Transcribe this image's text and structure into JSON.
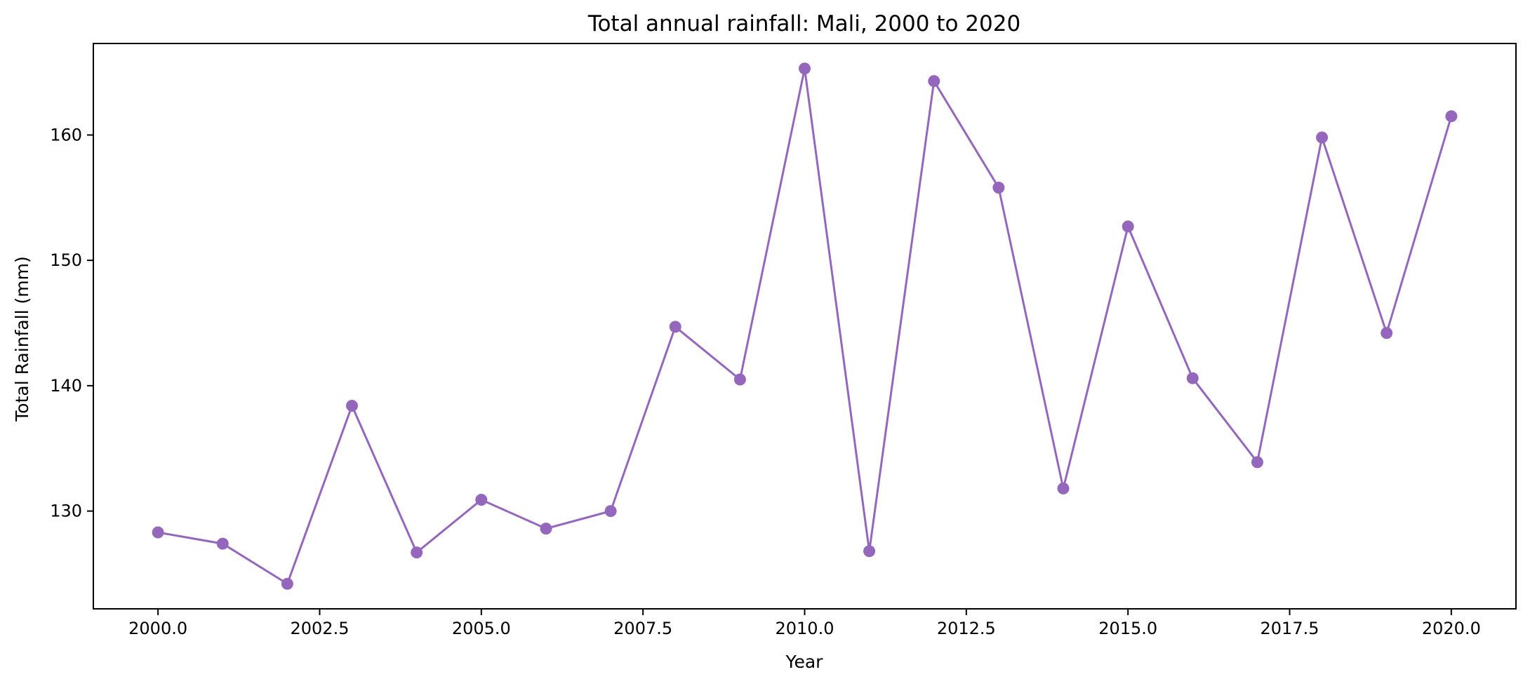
{
  "chart_data": {
    "type": "line",
    "title": "Total annual rainfall: Mali, 2000 to 2020",
    "xlabel": "Year",
    "ylabel": "Total Rainfall (mm)",
    "xlim": [
      1999,
      2021
    ],
    "ylim": [
      122.2,
      167.3
    ],
    "xticks": [
      2000.0,
      2002.5,
      2005.0,
      2007.5,
      2010.0,
      2012.5,
      2015.0,
      2017.5,
      2020.0
    ],
    "xtick_labels": [
      "2000.0",
      "2002.5",
      "2005.0",
      "2007.5",
      "2010.0",
      "2012.5",
      "2015.0",
      "2017.5",
      "2020.0"
    ],
    "yticks": [
      130,
      140,
      150,
      160
    ],
    "ytick_labels": [
      "130",
      "140",
      "150",
      "160"
    ],
    "grid": false,
    "line_color": "#9467bd",
    "marker": "circle",
    "series": [
      {
        "x": [
          2000,
          2001,
          2002,
          2003,
          2004,
          2005,
          2006,
          2007,
          2008,
          2009,
          2010,
          2011,
          2012,
          2013,
          2014,
          2015,
          2016,
          2017,
          2018,
          2019,
          2020
        ],
        "y": [
          128.3,
          127.4,
          124.2,
          138.4,
          126.7,
          130.9,
          128.6,
          130.0,
          144.7,
          140.5,
          165.3,
          126.8,
          164.3,
          155.8,
          131.8,
          152.7,
          140.6,
          133.9,
          159.8,
          144.2,
          161.5
        ]
      }
    ]
  }
}
